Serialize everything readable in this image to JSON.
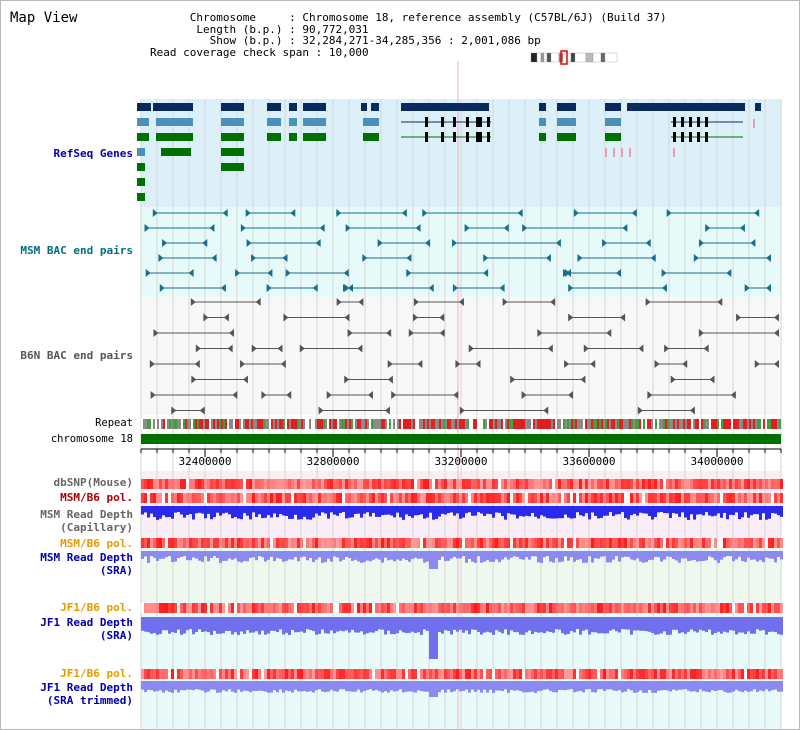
{
  "title": "Map View",
  "info": {
    "chromosome_label": "Chromosome",
    "chromosome_value": "Chromosome 18, reference assembly (C57BL/6J) (Build 37)",
    "length_label": "Length (b.p.)",
    "length_value": "90,772,031",
    "show_label": "Show (b.p.)",
    "show_value": "32,284,271-34,285,356 : 2,001,086 bp",
    "coverage_label": "Read coverage check span",
    "coverage_value": "10,000"
  },
  "tracks": {
    "refseq": "RefSeq Genes",
    "msm_bac": "MSM BAC end pairs",
    "b6n_bac": "B6N BAC end pairs",
    "repeat": "Repeat",
    "chromosome": "chromosome 18",
    "dbsnp": "dbSNP(Mouse)",
    "msm_b6_pol_1": "MSM/B6 pol.",
    "msm_depth_cap_1": "MSM Read Depth",
    "msm_depth_cap_2": "(Capillary)",
    "msm_b6_pol_2": "MSM/B6 pol.",
    "msm_depth_sra_1": "MSM Read Depth",
    "msm_depth_sra_2": "(SRA)",
    "jf1_b6_pol_1": "JF1/B6 pol.",
    "jf1_depth_sra_1": "JF1 Read Depth",
    "jf1_depth_sra_2": "(SRA)",
    "jf1_b6_pol_2": "JF1/B6 pol.",
    "jf1_depth_trim_1": "JF1 Read Depth",
    "jf1_depth_trim_2": "(SRA trimmed)"
  },
  "axis_ticks": [
    "32400000",
    "32800000",
    "33200000",
    "33600000",
    "34000000"
  ],
  "colors": {
    "refseq_bg": "#dcf0fa",
    "bac_bg": "#e6fafa",
    "refseq_label": "#0000aa",
    "msm_bac_label": "#006f7f",
    "b6n_label": "#555555",
    "pol_msm_label": "#aa0000",
    "pol_label": "#e69a00",
    "depth_label": "#0000aa",
    "chrom_bar": "#007000",
    "gene_dark": "#0a2a5e",
    "gene_blue": "#4a90b8",
    "gene_green": "#007000",
    "msm_bac": "#1a6e8c",
    "b6n_bac": "#555555",
    "depth_blue": "#2222dd"
  }
}
